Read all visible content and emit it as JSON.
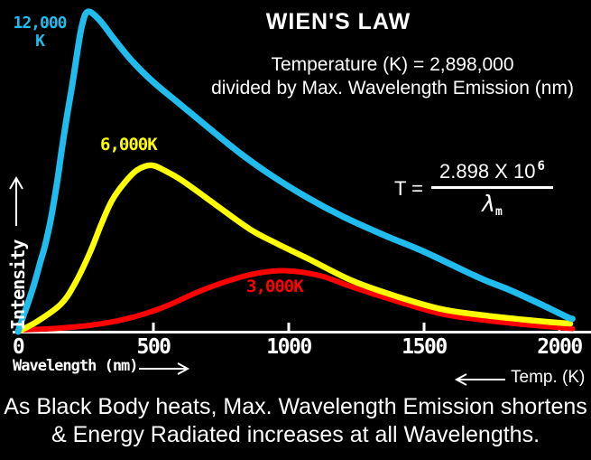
{
  "header": {
    "title": "WIEN'S LAW",
    "subtitle_line1": "Temperature (K) = 2,898,000",
    "subtitle_line2": "divided by Max. Wavelength Emission (nm)"
  },
  "formula": {
    "lhs": "T =",
    "numerator_base": "2.898 X 10",
    "exponent": "6",
    "denominator_symbol": "λ",
    "denominator_subscript": "m"
  },
  "axis_labels": {
    "y": "Intensity",
    "x": "Wavelength (nm)",
    "x_secondary": "Temp. (K)"
  },
  "curve_labels": {
    "hot_line1": "12,000",
    "hot_line2": "K",
    "medium": "6,000K",
    "cool": "3,000K"
  },
  "caption": {
    "line1": "As Black Body heats, Max. Wavelength Emission shortens",
    "line2": "& Energy Radiated increases at all Wavelengths."
  },
  "colors": {
    "background": "#000000",
    "text": "#FFFFFF",
    "axis": "#FFFFFF",
    "curve_12000K": "#21BCEE",
    "curve_6000K": "#FFFF00",
    "curve_3000K": "#FF0000"
  },
  "chart_data": {
    "type": "line",
    "title": "WIEN'S LAW",
    "xlabel": "Wavelength (nm)",
    "ylabel": "Intensity",
    "legend_position": "labels-on-curves",
    "grid": false,
    "x_ticks": [
      0,
      500,
      1000,
      1500,
      2000
    ],
    "x_tick_labels": [
      "0",
      "500",
      "1000",
      "1500",
      "2000"
    ],
    "x_range": [
      0,
      2120
    ],
    "y_range_relative_percent": [
      0,
      100
    ],
    "series": [
      {
        "key": "curve-3000k",
        "name": "3,000K",
        "temperature_K": 3000,
        "peak_wavelength_nm": 1000,
        "peak_relative_intensity": 19,
        "color": "#FF0000",
        "stroke_width": 6,
        "points": [
          [
            0,
            0.5
          ],
          [
            133,
            1
          ],
          [
            267,
            2
          ],
          [
            400,
            4
          ],
          [
            533,
            7.5
          ],
          [
            667,
            12.5
          ],
          [
            800,
            16.5
          ],
          [
            900,
            18.5
          ],
          [
            1000,
            19
          ],
          [
            1117,
            17.5
          ],
          [
            1233,
            14
          ],
          [
            1400,
            9.5
          ],
          [
            1567,
            5.5
          ],
          [
            1733,
            3.5
          ],
          [
            1900,
            2
          ],
          [
            2048,
            1
          ]
        ]
      },
      {
        "key": "curve-6000k",
        "name": "6,000K",
        "temperature_K": 6000,
        "peak_wavelength_nm": 490,
        "peak_relative_intensity": 52,
        "color": "#FFFF00",
        "stroke_width": 6.5,
        "points": [
          [
            0,
            0
          ],
          [
            67,
            3
          ],
          [
            157,
            8.5
          ],
          [
            210,
            15
          ],
          [
            267,
            25
          ],
          [
            307,
            33.5
          ],
          [
            347,
            41
          ],
          [
            393,
            46.5
          ],
          [
            440,
            50.5
          ],
          [
            493,
            52
          ],
          [
            550,
            50
          ],
          [
            610,
            47
          ],
          [
            733,
            39.5
          ],
          [
            857,
            32
          ],
          [
            957,
            27.5
          ],
          [
            1067,
            23
          ],
          [
            1233,
            16
          ],
          [
            1400,
            11
          ],
          [
            1567,
            7
          ],
          [
            1733,
            5
          ],
          [
            1900,
            3.5
          ],
          [
            2040,
            2.5
          ]
        ]
      },
      {
        "key": "curve-12000k",
        "name": "12,000 K",
        "temperature_K": 12000,
        "peak_wavelength_nm": 260,
        "peak_relative_intensity": 100,
        "color": "#21BCEE",
        "stroke_width": 7,
        "points": [
          [
            0,
            0
          ],
          [
            20,
            5
          ],
          [
            37,
            9
          ],
          [
            60,
            15
          ],
          [
            83,
            22
          ],
          [
            100,
            27
          ],
          [
            123,
            36
          ],
          [
            143,
            46
          ],
          [
            160,
            56
          ],
          [
            180,
            67
          ],
          [
            200,
            77
          ],
          [
            220,
            88
          ],
          [
            237,
            96
          ],
          [
            258,
            100
          ],
          [
            300,
            97.5
          ],
          [
            350,
            92
          ],
          [
            417,
            85
          ],
          [
            500,
            78
          ],
          [
            600,
            71
          ],
          [
            700,
            64
          ],
          [
            817,
            56
          ],
          [
            933,
            49
          ],
          [
            1067,
            42
          ],
          [
            1200,
            36
          ],
          [
            1357,
            30
          ],
          [
            1500,
            25
          ],
          [
            1700,
            17
          ],
          [
            1817,
            13
          ],
          [
            1933,
            8.5
          ],
          [
            2030,
            4.5
          ],
          [
            2048,
            4
          ]
        ]
      }
    ]
  }
}
